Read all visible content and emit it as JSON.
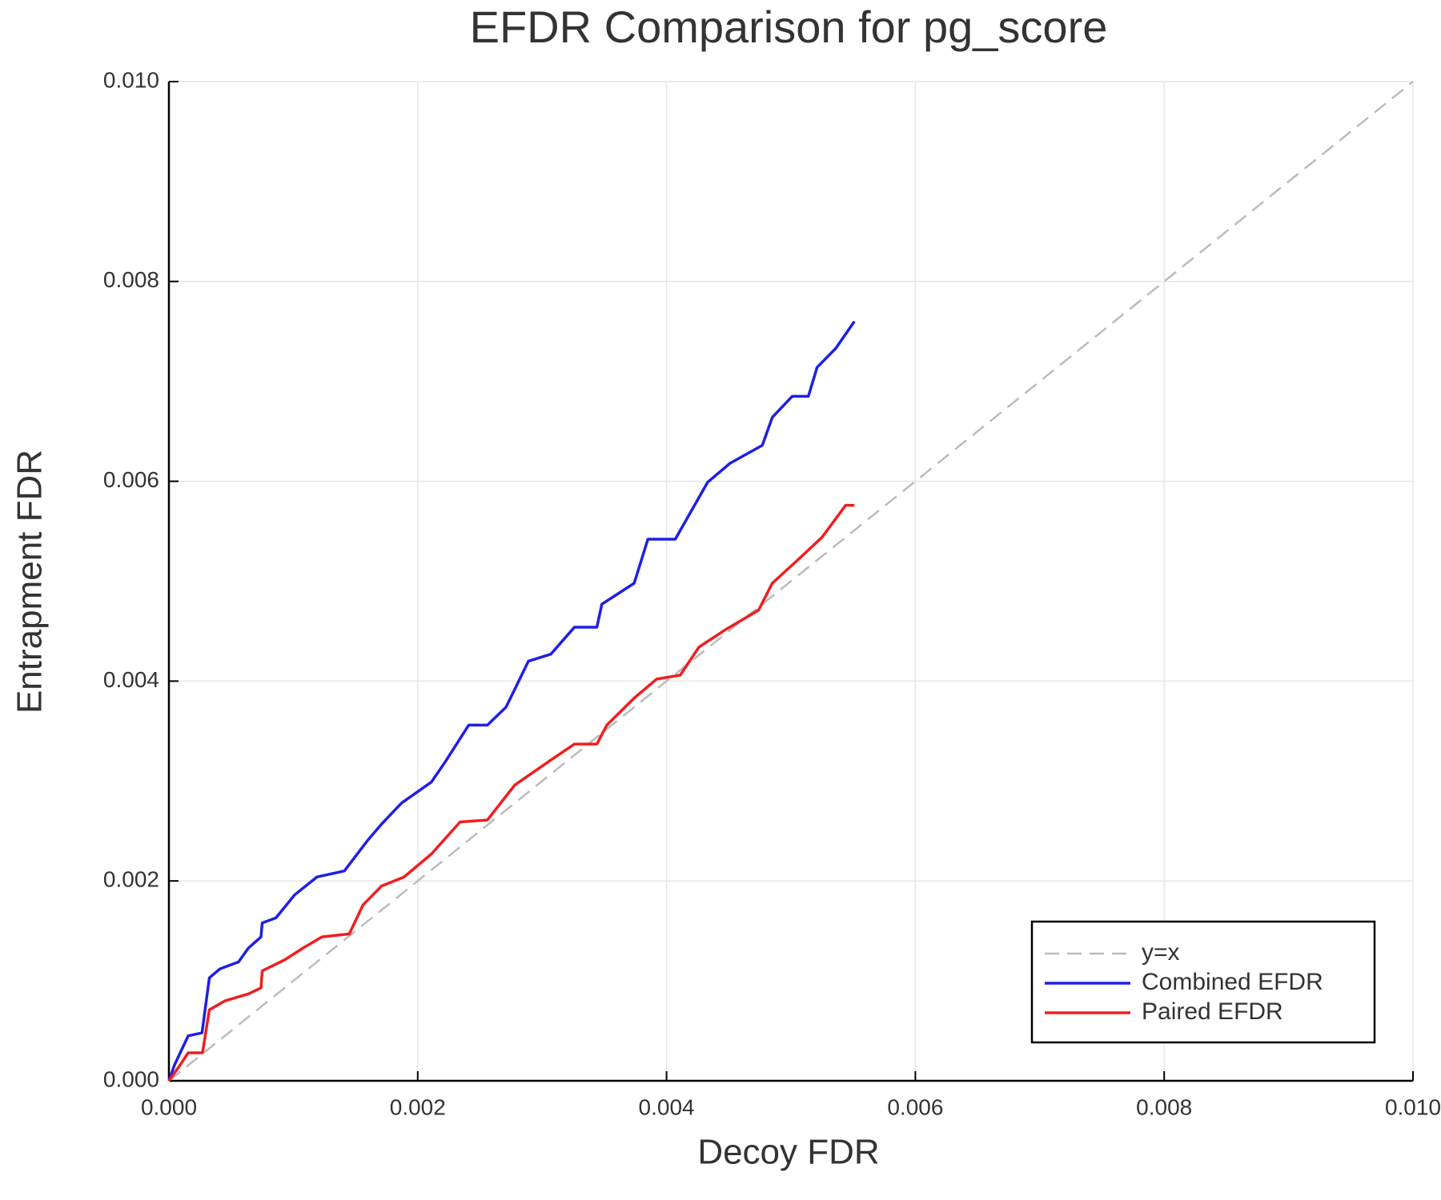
{
  "chart_data": {
    "type": "line",
    "title": "EFDR Comparison for pg_score",
    "xlabel": "Decoy FDR",
    "ylabel": "Entrapment FDR",
    "xlim": [
      0,
      0.01
    ],
    "ylim": [
      0,
      0.01
    ],
    "xticks": [
      {
        "value": 0,
        "label": "0.000"
      },
      {
        "value": 0.002,
        "label": "0.002"
      },
      {
        "value": 0.004,
        "label": "0.004"
      },
      {
        "value": 0.006,
        "label": "0.006"
      },
      {
        "value": 0.008,
        "label": "0.008"
      },
      {
        "value": 0.01,
        "label": "0.010"
      }
    ],
    "yticks": [
      {
        "value": 0,
        "label": "0.000"
      },
      {
        "value": 0.002,
        "label": "0.002"
      },
      {
        "value": 0.004,
        "label": "0.004"
      },
      {
        "value": 0.006,
        "label": "0.006"
      },
      {
        "value": 0.008,
        "label": "0.008"
      },
      {
        "value": 0.01,
        "label": "0.010"
      }
    ],
    "grid": true,
    "legend": "lower right",
    "series": [
      {
        "name": "y=x",
        "color": "#bbbbbb",
        "dash": true,
        "x": [
          0,
          0.01
        ],
        "values": [
          0,
          0.01
        ]
      },
      {
        "name": "Combined EFDR",
        "color": "#1f1fe6",
        "dash": false,
        "x": [
          0,
          4.4e-05,
          0.000155,
          0.000266,
          0.000325,
          0.00041,
          0.00056,
          0.00064,
          0.00074,
          0.00075,
          0.00086,
          0.00101,
          0.00119,
          0.00141,
          0.0016,
          0.00171,
          0.00187,
          0.00211,
          0.00222,
          0.00241,
          0.00256,
          0.00271,
          0.00289,
          0.00307,
          0.00326,
          0.00344,
          0.00348,
          0.00374,
          0.00385,
          0.00407,
          0.00433,
          0.00451,
          0.00477,
          0.00485,
          0.00501,
          0.00514,
          0.00521,
          0.00536,
          0.00551
        ],
        "values": [
          0,
          0.000156,
          0.00045,
          0.00048,
          0.00103,
          0.00112,
          0.00119,
          0.00133,
          0.00144,
          0.00158,
          0.00163,
          0.00186,
          0.00204,
          0.0021,
          0.00241,
          0.00257,
          0.00278,
          0.00299,
          0.00319,
          0.00356,
          0.00356,
          0.00374,
          0.0042,
          0.00427,
          0.00454,
          0.00454,
          0.00477,
          0.00498,
          0.00542,
          0.00542,
          0.00599,
          0.00618,
          0.00636,
          0.00664,
          0.00685,
          0.00685,
          0.00714,
          0.00733,
          0.0076
        ]
      },
      {
        "name": "Paired EFDR",
        "color": "#f01e1e",
        "dash": false,
        "x": [
          0,
          8e-05,
          0.000155,
          0.00027,
          0.000325,
          0.00045,
          0.00064,
          0.00074,
          0.00075,
          0.00093,
          0.00108,
          0.00123,
          0.00145,
          0.00156,
          0.00171,
          0.00189,
          0.00211,
          0.00234,
          0.00256,
          0.00278,
          0.00307,
          0.00326,
          0.00344,
          0.00352,
          0.00374,
          0.00392,
          0.00411,
          0.00426,
          0.00448,
          0.00474,
          0.00485,
          0.00507,
          0.00525,
          0.00544,
          0.00551
        ],
        "values": [
          0,
          0.00014,
          0.00028,
          0.00028,
          0.00071,
          0.0008,
          0.00087,
          0.00093,
          0.0011,
          0.00121,
          0.00133,
          0.00144,
          0.00147,
          0.00176,
          0.00195,
          0.00204,
          0.00227,
          0.00259,
          0.00261,
          0.00296,
          0.00321,
          0.00337,
          0.00337,
          0.00356,
          0.00383,
          0.00402,
          0.00406,
          0.00434,
          0.00452,
          0.00471,
          0.00498,
          0.00523,
          0.00544,
          0.00576,
          0.00576
        ]
      }
    ]
  }
}
